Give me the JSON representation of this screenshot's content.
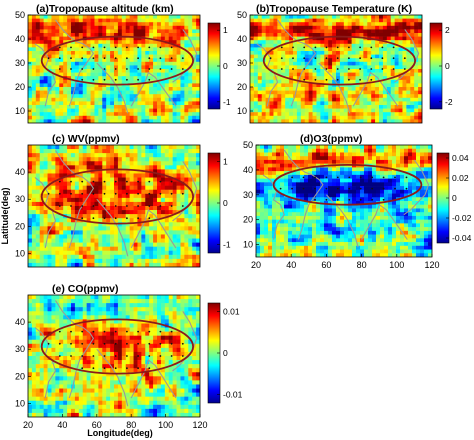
{
  "chart_data": [
    {
      "type": "heatmap",
      "title": "(a)Tropopause altitude (km)",
      "xlim": [
        20,
        120
      ],
      "ylim": [
        5,
        50
      ],
      "xticks": [],
      "yticks": [
        10,
        20,
        30,
        40,
        50
      ],
      "xlabel": "",
      "ylabel": "",
      "colorbar": {
        "ticks": [
          1,
          0,
          -1
        ],
        "range": [
          -1.2,
          1.2
        ]
      },
      "fields": {
        "mean": 0.1,
        "north_band": 0.7,
        "inside": -0.1
      },
      "outline": {
        "center_lon": 72,
        "center_lat": 31,
        "half_width_lon": 44,
        "half_height_lat": 10
      }
    },
    {
      "type": "heatmap",
      "title": "(b)Tropopause Temperature (K)",
      "xlim": [
        20,
        120
      ],
      "ylim": [
        5,
        50
      ],
      "xticks": [],
      "yticks": [
        10,
        20,
        30,
        40,
        50
      ],
      "xlabel": "",
      "ylabel": "",
      "colorbar": {
        "ticks": [
          2,
          0,
          -2
        ],
        "range": [
          -2.4,
          2.4
        ]
      },
      "fields": {
        "mean": 0.2,
        "north_band": 0.6,
        "inside": -0.2
      },
      "outline": {
        "center_lon": 72,
        "center_lat": 31,
        "half_width_lon": 44,
        "half_height_lat": 10
      }
    },
    {
      "type": "heatmap",
      "title": "(c) WV(ppmv)",
      "xlim": [
        20,
        120
      ],
      "ylim": [
        5,
        50
      ],
      "xticks": [],
      "yticks": [
        10,
        20,
        30,
        40
      ],
      "xlabel": "",
      "ylabel": "Latitude(deg)",
      "colorbar": {
        "ticks": [
          1,
          0,
          -1
        ],
        "range": [
          -1.2,
          1.2
        ]
      },
      "fields": {
        "mean": 0.05,
        "north_band": 0.2,
        "inside": 0.75
      },
      "outline": {
        "center_lon": 72,
        "center_lat": 31,
        "half_width_lon": 44,
        "half_height_lat": 10
      }
    },
    {
      "type": "heatmap",
      "title": "(d)O3(ppmv)",
      "xlim": [
        20,
        120
      ],
      "ylim": [
        5,
        50
      ],
      "xticks": [
        20,
        40,
        60,
        80,
        100,
        120
      ],
      "yticks": [
        10,
        20,
        30,
        40,
        50
      ],
      "xlabel": "",
      "ylabel": "",
      "colorbar": {
        "ticks": [
          0.04,
          0.02,
          0,
          -0.02,
          -0.04
        ],
        "range": [
          -0.045,
          0.045
        ]
      },
      "fields": {
        "mean": -0.1,
        "north_band": 0.85,
        "inside": -0.85
      },
      "outline": {
        "center_lon": 72,
        "center_lat": 34,
        "half_width_lon": 42,
        "half_height_lat": 8
      }
    },
    {
      "type": "heatmap",
      "title": "(e) CO(ppmv)",
      "xlim": [
        20,
        120
      ],
      "ylim": [
        5,
        50
      ],
      "xticks": [
        20,
        40,
        60,
        80,
        100,
        120
      ],
      "yticks": [
        10,
        20,
        30,
        40
      ],
      "xlabel": "Longitude(deg)",
      "ylabel": "",
      "colorbar": {
        "ticks": [
          0.01,
          0,
          -0.01
        ],
        "range": [
          -0.012,
          0.012
        ]
      },
      "fields": {
        "mean": 0.05,
        "north_band": -0.2,
        "inside": 0.65
      },
      "outline": {
        "center_lon": 72,
        "center_lat": 31,
        "half_width_lon": 44,
        "half_height_lat": 10
      }
    }
  ]
}
